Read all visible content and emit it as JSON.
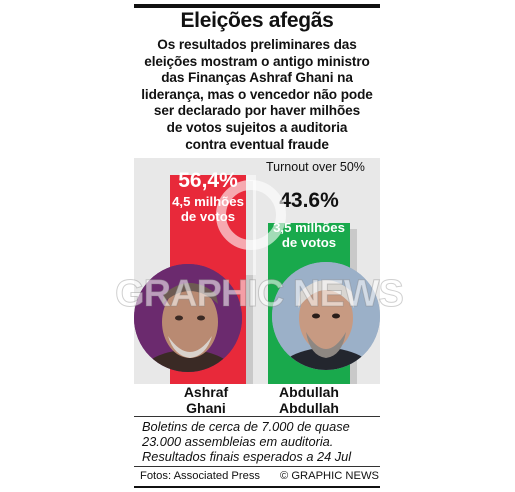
{
  "title": "Eleições afegãs",
  "subtitle": [
    "Os resultados preliminares das",
    "eleições mostram o antigo ministro",
    "das Finanças Ashraf Ghani na",
    "liderança, mas o vencedor não pode",
    "ser declarado por haver milhões",
    "de votos sujeitos a auditoria",
    "contra eventual fraude"
  ],
  "turnout_label": "Turnout over 50%",
  "candidates": [
    {
      "name_line1": "Ashraf",
      "name_line2": "Ghani",
      "pct_label": "56,4%",
      "votes_line1": "4,5 milhões",
      "votes_line2": "de votos"
    },
    {
      "name_line1": "Abdullah",
      "name_line2": "Abdullah",
      "pct_label": "43.6%",
      "votes_line1": "3,5 milhões",
      "votes_line2": "de votos"
    }
  ],
  "note": [
    "Boletins de cerca de 7.000 de quase",
    "23.000 assembleias em auditoria.",
    "Resultados finais esperados a 24 Jul"
  ],
  "credit_photos": "Fotos: Associated Press",
  "credit_agency": "© GRAPHIC NEWS",
  "watermark": "GRAPHIC NEWS",
  "colors": {
    "ghani": "#e8293a",
    "abdullah": "#19a94c",
    "background_box": "#e8e8e8"
  },
  "chart_data": {
    "type": "bar",
    "categories": [
      "Ashraf Ghani",
      "Abdullah Abdullah"
    ],
    "values": [
      56.4,
      43.6
    ],
    "votes_millions": [
      4.5,
      3.5
    ],
    "ylim": [
      0,
      60
    ],
    "title": "Eleições afegãs",
    "xlabel": "",
    "ylabel": "",
    "grid": false
  }
}
